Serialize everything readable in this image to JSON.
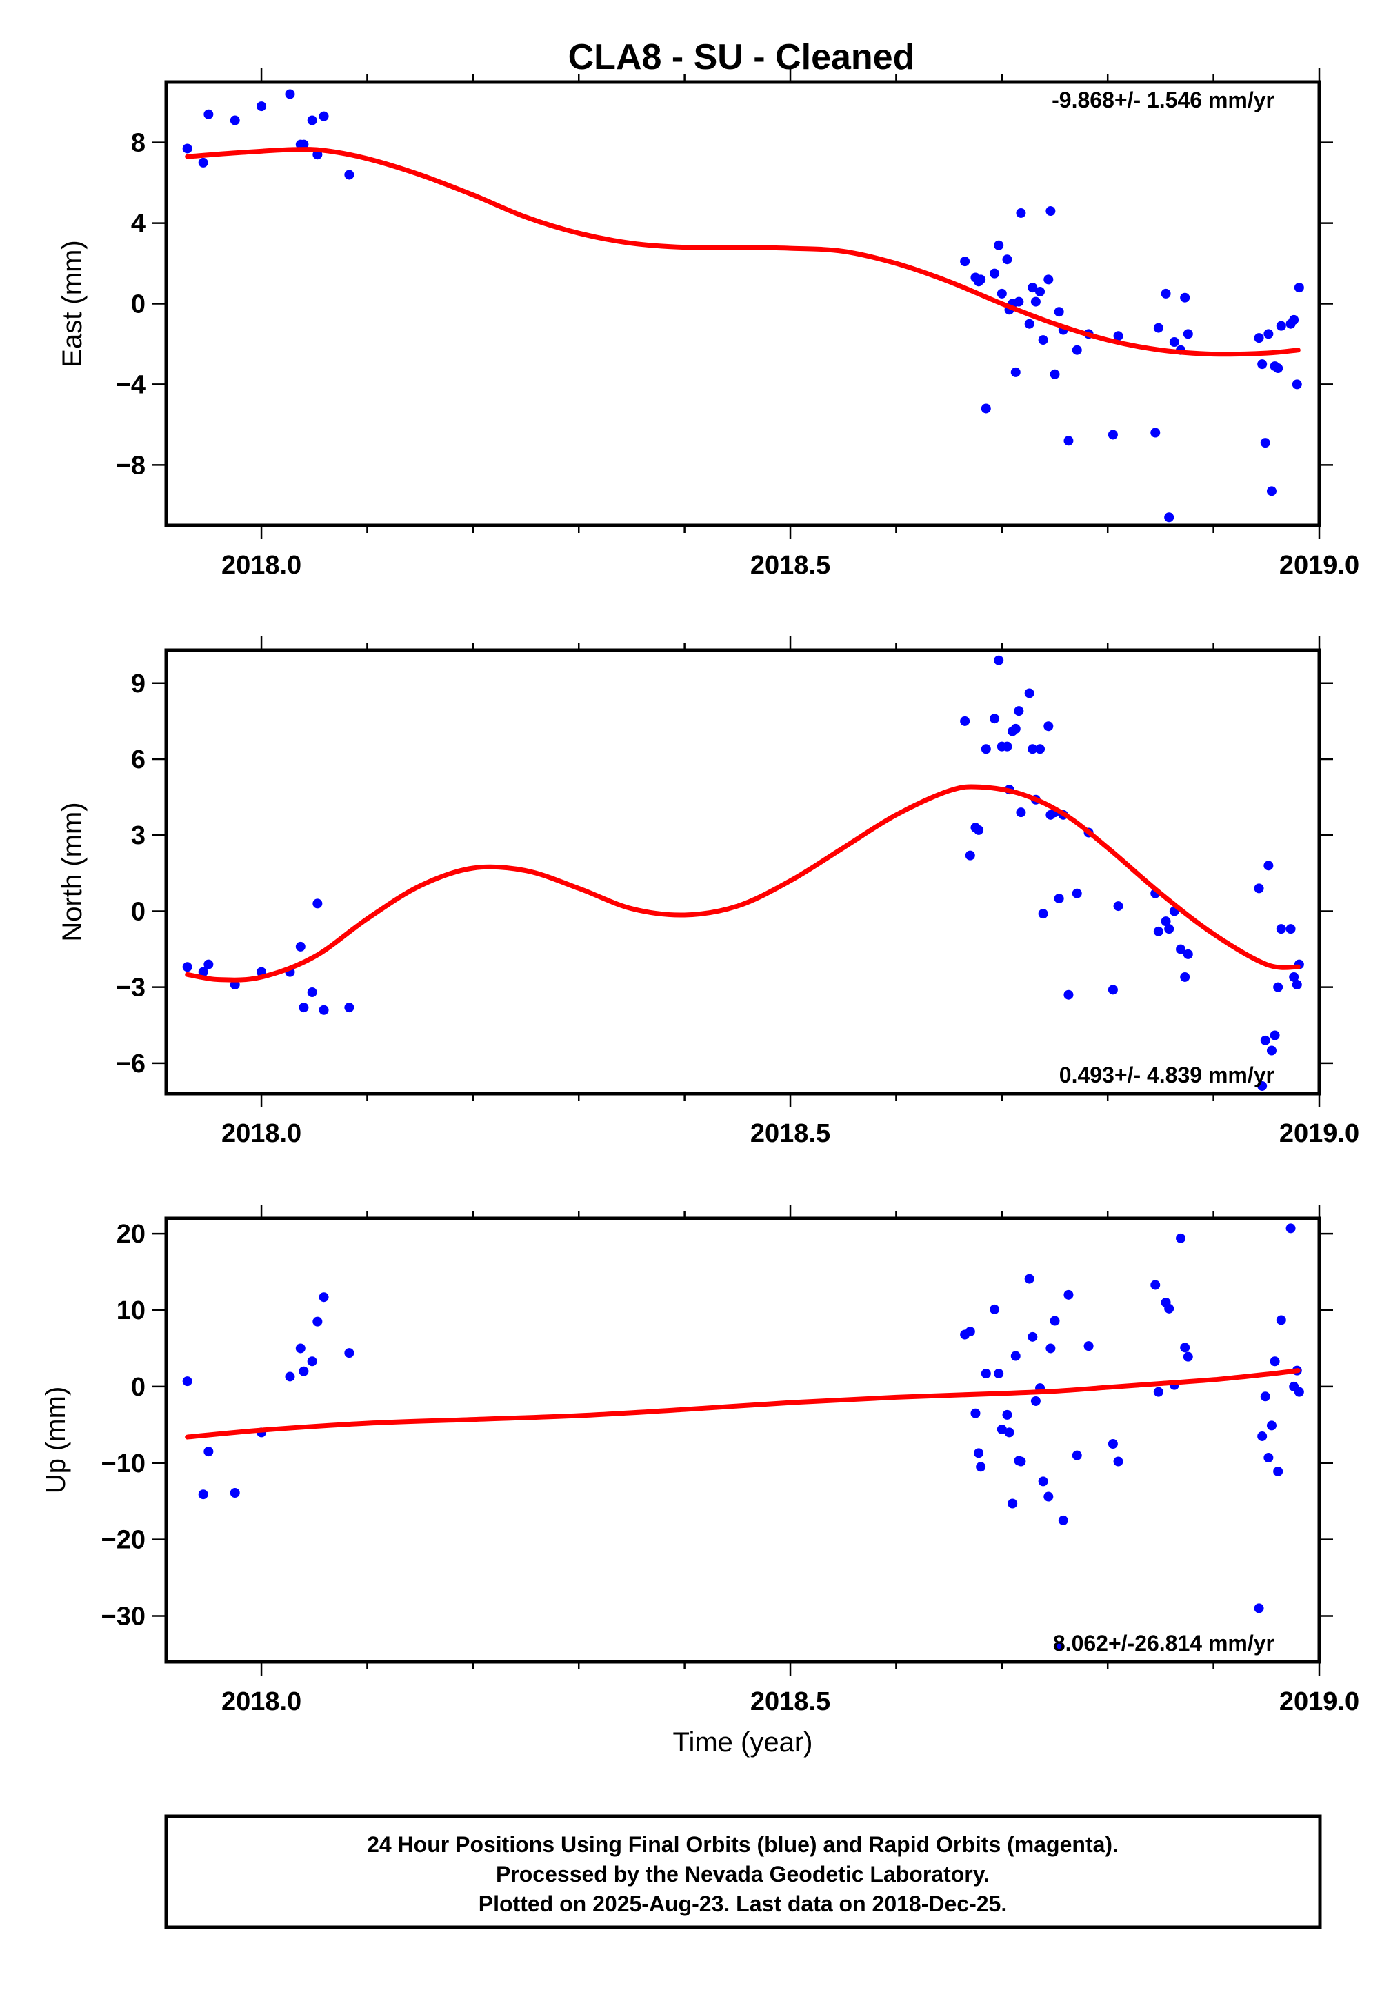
{
  "page": {
    "title": "CLA8  - SU - Cleaned",
    "footer": [
      "24 Hour Positions Using Final Orbits (blue) and Rapid Orbits (magenta).",
      "Processed by the Nevada Geodetic Laboratory.",
      "Plotted on 2025-Aug-23. Last data on 2018-Dec-25."
    ]
  },
  "colors": {
    "points": "#0000ff",
    "fit": "#ff0000",
    "frame": "#000000"
  },
  "chart_data": [
    {
      "type": "scatter",
      "ylabel": "East (mm)",
      "xlabel": "",
      "xlim": [
        2017.91,
        2019.0
      ],
      "ylim": [
        -11,
        11
      ],
      "xticks": [
        2018.0,
        2018.5,
        2019.0
      ],
      "xtick_labels": [
        "2018.0",
        "2018.5",
        "2019.0"
      ],
      "yticks": [
        -8,
        -4,
        0,
        4,
        8
      ],
      "ytick_labels": [
        "−8",
        "−4",
        "0",
        "4",
        "8"
      ],
      "rate": "-9.868+/- 1.546 mm/yr",
      "rate_position": "top-right",
      "series": [
        {
          "kind": "points",
          "x": [
            2017.93,
            2017.945,
            2017.95,
            2017.975,
            2018.0,
            2018.027,
            2018.037,
            2018.04,
            2018.048,
            2018.053,
            2018.059,
            2018.083,
            2018.665,
            2018.675,
            2018.678,
            2018.68,
            2018.685,
            2018.693,
            2018.697,
            2018.7,
            2018.705,
            2018.707,
            2018.71,
            2018.713,
            2018.716,
            2018.718,
            2018.726,
            2018.729,
            2018.732,
            2018.736,
            2018.739,
            2018.744,
            2018.746,
            2018.75,
            2018.754,
            2018.758,
            2018.763,
            2018.771,
            2018.782,
            2018.805,
            2018.81,
            2018.845,
            2018.848,
            2018.855,
            2018.858,
            2018.863,
            2018.869,
            2018.873,
            2018.876,
            2018.943,
            2018.946,
            2018.949,
            2018.952,
            2018.955,
            2018.958,
            2018.961,
            2018.964,
            2018.973,
            2018.976,
            2018.979,
            2018.981
          ],
          "y": [
            7.7,
            7.0,
            9.4,
            9.1,
            9.8,
            10.4,
            7.9,
            7.9,
            9.1,
            7.4,
            9.3,
            6.4,
            2.1,
            1.3,
            1.1,
            1.2,
            -5.2,
            1.5,
            2.9,
            0.5,
            2.2,
            -0.3,
            0.0,
            -3.4,
            0.1,
            4.5,
            -1.0,
            0.8,
            0.1,
            0.6,
            -1.8,
            1.2,
            4.6,
            -3.5,
            -0.4,
            -1.3,
            -6.8,
            -2.3,
            -1.5,
            -6.5,
            -1.6,
            -6.4,
            -1.2,
            0.5,
            -10.6,
            -1.9,
            -2.3,
            0.3,
            -1.5,
            -1.7,
            -3.0,
            -6.9,
            -1.5,
            -9.3,
            -3.1,
            -3.2,
            -1.1,
            -1.0,
            -0.8,
            -4.0,
            0.8
          ]
        },
        {
          "kind": "fit",
          "x": [
            2017.93,
            2017.98,
            2018.03,
            2018.06,
            2018.1,
            2018.15,
            2018.2,
            2018.25,
            2018.3,
            2018.35,
            2018.4,
            2018.45,
            2018.5,
            2018.55,
            2018.6,
            2018.65,
            2018.7,
            2018.75,
            2018.8,
            2018.85,
            2018.9,
            2018.95,
            2018.98
          ],
          "y": [
            7.3,
            7.5,
            7.65,
            7.6,
            7.2,
            6.4,
            5.4,
            4.3,
            3.5,
            3.0,
            2.8,
            2.8,
            2.75,
            2.6,
            2.0,
            1.1,
            0.0,
            -1.0,
            -1.8,
            -2.3,
            -2.5,
            -2.45,
            -2.3
          ]
        }
      ]
    },
    {
      "type": "scatter",
      "ylabel": "North (mm)",
      "xlabel": "",
      "xlim": [
        2017.91,
        2019.0
      ],
      "ylim": [
        -7.2,
        10.3
      ],
      "xticks": [
        2018.0,
        2018.5,
        2019.0
      ],
      "xtick_labels": [
        "2018.0",
        "2018.5",
        "2019.0"
      ],
      "yticks": [
        -6,
        -3,
        0,
        3,
        6,
        9
      ],
      "ytick_labels": [
        "−6",
        "−3",
        "0",
        "3",
        "6",
        "9"
      ],
      "rate": "0.493+/- 4.839 mm/yr",
      "rate_position": "bottom-right",
      "series": [
        {
          "kind": "points",
          "x": [
            2017.93,
            2017.945,
            2017.95,
            2017.975,
            2018.0,
            2018.027,
            2018.037,
            2018.04,
            2018.048,
            2018.053,
            2018.059,
            2018.083,
            2018.665,
            2018.67,
            2018.675,
            2018.678,
            2018.685,
            2018.693,
            2018.697,
            2018.7,
            2018.705,
            2018.707,
            2018.71,
            2018.713,
            2018.716,
            2018.718,
            2018.726,
            2018.729,
            2018.732,
            2018.736,
            2018.739,
            2018.744,
            2018.746,
            2018.75,
            2018.754,
            2018.758,
            2018.763,
            2018.771,
            2018.782,
            2018.805,
            2018.81,
            2018.845,
            2018.848,
            2018.855,
            2018.858,
            2018.863,
            2018.869,
            2018.873,
            2018.876,
            2018.943,
            2018.946,
            2018.949,
            2018.952,
            2018.955,
            2018.958,
            2018.961,
            2018.964,
            2018.973,
            2018.976,
            2018.979,
            2018.981
          ],
          "y": [
            -2.2,
            -2.4,
            -2.1,
            -2.9,
            -2.4,
            -2.4,
            -1.4,
            -3.8,
            -3.2,
            0.3,
            -3.9,
            -3.8,
            7.5,
            2.2,
            3.3,
            3.2,
            6.4,
            7.6,
            9.9,
            6.5,
            6.5,
            4.8,
            7.1,
            7.2,
            7.9,
            3.9,
            8.6,
            6.4,
            4.4,
            6.4,
            -0.1,
            7.3,
            3.8,
            3.9,
            0.5,
            3.8,
            -3.3,
            0.7,
            3.1,
            -3.1,
            0.2,
            0.7,
            -0.8,
            -0.4,
            -0.7,
            0.0,
            -1.5,
            -2.6,
            -1.7,
            0.9,
            -6.9,
            -5.1,
            1.8,
            -5.5,
            -4.9,
            -3.0,
            -0.7,
            -0.7,
            -2.6,
            -2.9,
            -2.1
          ],
          "note_x_y_pairs_trimmed": ""
        },
        {
          "kind": "fit",
          "x": [
            2017.93,
            2017.96,
            2018.0,
            2018.05,
            2018.1,
            2018.15,
            2018.2,
            2018.25,
            2018.3,
            2018.35,
            2018.4,
            2018.45,
            2018.5,
            2018.55,
            2018.6,
            2018.65,
            2018.68,
            2018.72,
            2018.76,
            2018.8,
            2018.85,
            2018.9,
            2018.95,
            2018.98
          ],
          "y": [
            -2.5,
            -2.7,
            -2.6,
            -1.8,
            -0.3,
            1.0,
            1.7,
            1.6,
            0.9,
            0.1,
            -0.15,
            0.2,
            1.2,
            2.5,
            3.8,
            4.75,
            4.9,
            4.6,
            3.8,
            2.5,
            0.7,
            -0.9,
            -2.1,
            -2.2
          ]
        }
      ]
    },
    {
      "type": "scatter",
      "ylabel": "Up (mm)",
      "xlabel": "Time (year)",
      "xlim": [
        2017.91,
        2019.0
      ],
      "ylim": [
        -36,
        22
      ],
      "xticks": [
        2018.0,
        2018.5,
        2019.0
      ],
      "xtick_labels": [
        "2018.0",
        "2018.5",
        "2019.0"
      ],
      "yticks": [
        -30,
        -20,
        -10,
        0,
        10,
        20
      ],
      "ytick_labels": [
        "−30",
        "−20",
        "−10",
        "0",
        "10",
        "20"
      ],
      "rate": "8.062+/-26.814 mm/yr",
      "rate_position": "bottom-right",
      "series": [
        {
          "kind": "points",
          "x": [
            2017.93,
            2017.945,
            2017.95,
            2017.975,
            2018.0,
            2018.027,
            2018.037,
            2018.04,
            2018.048,
            2018.053,
            2018.059,
            2018.083,
            2018.665,
            2018.67,
            2018.675,
            2018.678,
            2018.68,
            2018.685,
            2018.693,
            2018.697,
            2018.7,
            2018.705,
            2018.707,
            2018.71,
            2018.713,
            2018.716,
            2018.718,
            2018.726,
            2018.729,
            2018.732,
            2018.736,
            2018.739,
            2018.744,
            2018.746,
            2018.75,
            2018.754,
            2018.758,
            2018.763,
            2018.771,
            2018.782,
            2018.805,
            2018.81,
            2018.845,
            2018.848,
            2018.855,
            2018.858,
            2018.863,
            2018.869,
            2018.873,
            2018.876,
            2018.943,
            2018.946,
            2018.949,
            2018.952,
            2018.955,
            2018.958,
            2018.961,
            2018.964,
            2018.973,
            2018.976,
            2018.979,
            2018.981
          ],
          "y": [
            0.7,
            -14.1,
            -8.5,
            -13.9,
            -6.0,
            1.3,
            5.0,
            2.0,
            3.3,
            8.5,
            11.7,
            4.4,
            6.8,
            7.2,
            -3.5,
            -8.7,
            -10.5,
            1.7,
            10.1,
            1.7,
            -5.6,
            -3.7,
            -6.0,
            -15.3,
            4.0,
            -9.7,
            -9.8,
            14.1,
            6.5,
            -1.9,
            -0.2,
            -12.4,
            -14.4,
            5.0,
            8.6,
            -34.0,
            -17.5,
            12.0,
            -9.0,
            5.3,
            -7.5,
            -9.8,
            13.3,
            -0.7,
            11.0,
            10.2,
            0.2,
            19.4,
            5.1,
            3.9,
            -29.0,
            -6.5,
            -1.3,
            -9.3,
            -5.1,
            3.3,
            -11.1,
            8.7,
            20.7,
            0.0,
            2.1,
            -0.7
          ],
          "note_x_y_pairs_trimmed": ""
        },
        {
          "kind": "fit",
          "x": [
            2017.93,
            2018.0,
            2018.1,
            2018.2,
            2018.3,
            2018.4,
            2018.5,
            2018.6,
            2018.7,
            2018.75,
            2018.8,
            2018.85,
            2018.9,
            2018.95,
            2018.98
          ],
          "y": [
            -6.6,
            -5.7,
            -4.8,
            -4.3,
            -3.8,
            -3.0,
            -2.1,
            -1.4,
            -0.9,
            -0.6,
            -0.1,
            0.4,
            0.9,
            1.6,
            2.1
          ]
        }
      ]
    }
  ]
}
